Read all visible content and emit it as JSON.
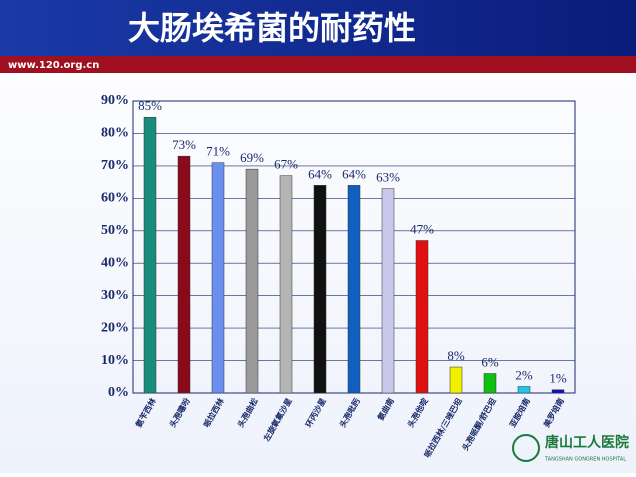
{
  "header": {
    "title": "大肠埃希菌的耐药性",
    "url": "www.120.org.cn"
  },
  "chart_data": {
    "type": "bar",
    "categories": [
      "氨苄西林",
      "头孢噻吩",
      "哌拉西林",
      "头孢曲松",
      "左旋氧氟沙星",
      "环丙沙星",
      "头孢吡肟",
      "氨曲南",
      "头孢他啶",
      "哌拉西林/三唑巴坦",
      "头孢哌酮/舒巴坦",
      "亚胺培南",
      "美罗培南"
    ],
    "values": [
      85,
      73,
      71,
      69,
      67,
      64,
      64,
      63,
      47,
      8,
      6,
      2,
      1
    ],
    "value_labels": [
      "85%",
      "73%",
      "71%",
      "69%",
      "67%",
      "64%",
      "64%",
      "63%",
      "47%",
      "8%",
      "6%",
      "2%",
      "1%"
    ],
    "colors": [
      "#1a8c7c",
      "#8b0a1a",
      "#6b8ff0",
      "#9a9a9a",
      "#b4b4b4",
      "#111111",
      "#1060c0",
      "#c8c8ec",
      "#e01010",
      "#f0f000",
      "#10c010",
      "#20c8e8",
      "#1010c0"
    ],
    "ylim": [
      0,
      90
    ],
    "yticks": [
      {
        "value": 0,
        "label": "0%"
      },
      {
        "value": 10,
        "label": "10%"
      },
      {
        "value": 20,
        "label": "20%"
      },
      {
        "value": 30,
        "label": "30%"
      },
      {
        "value": 40,
        "label": "40%"
      },
      {
        "value": 50,
        "label": "50%"
      },
      {
        "value": 60,
        "label": "60%"
      },
      {
        "value": 70,
        "label": "70%"
      },
      {
        "value": 80,
        "label": "80%"
      },
      {
        "value": 90,
        "label": "90%"
      }
    ],
    "grid": true
  },
  "logo": {
    "name": "唐山工人医院",
    "subtitle": "TANGSHAN GONGREN HOSPITAL"
  }
}
